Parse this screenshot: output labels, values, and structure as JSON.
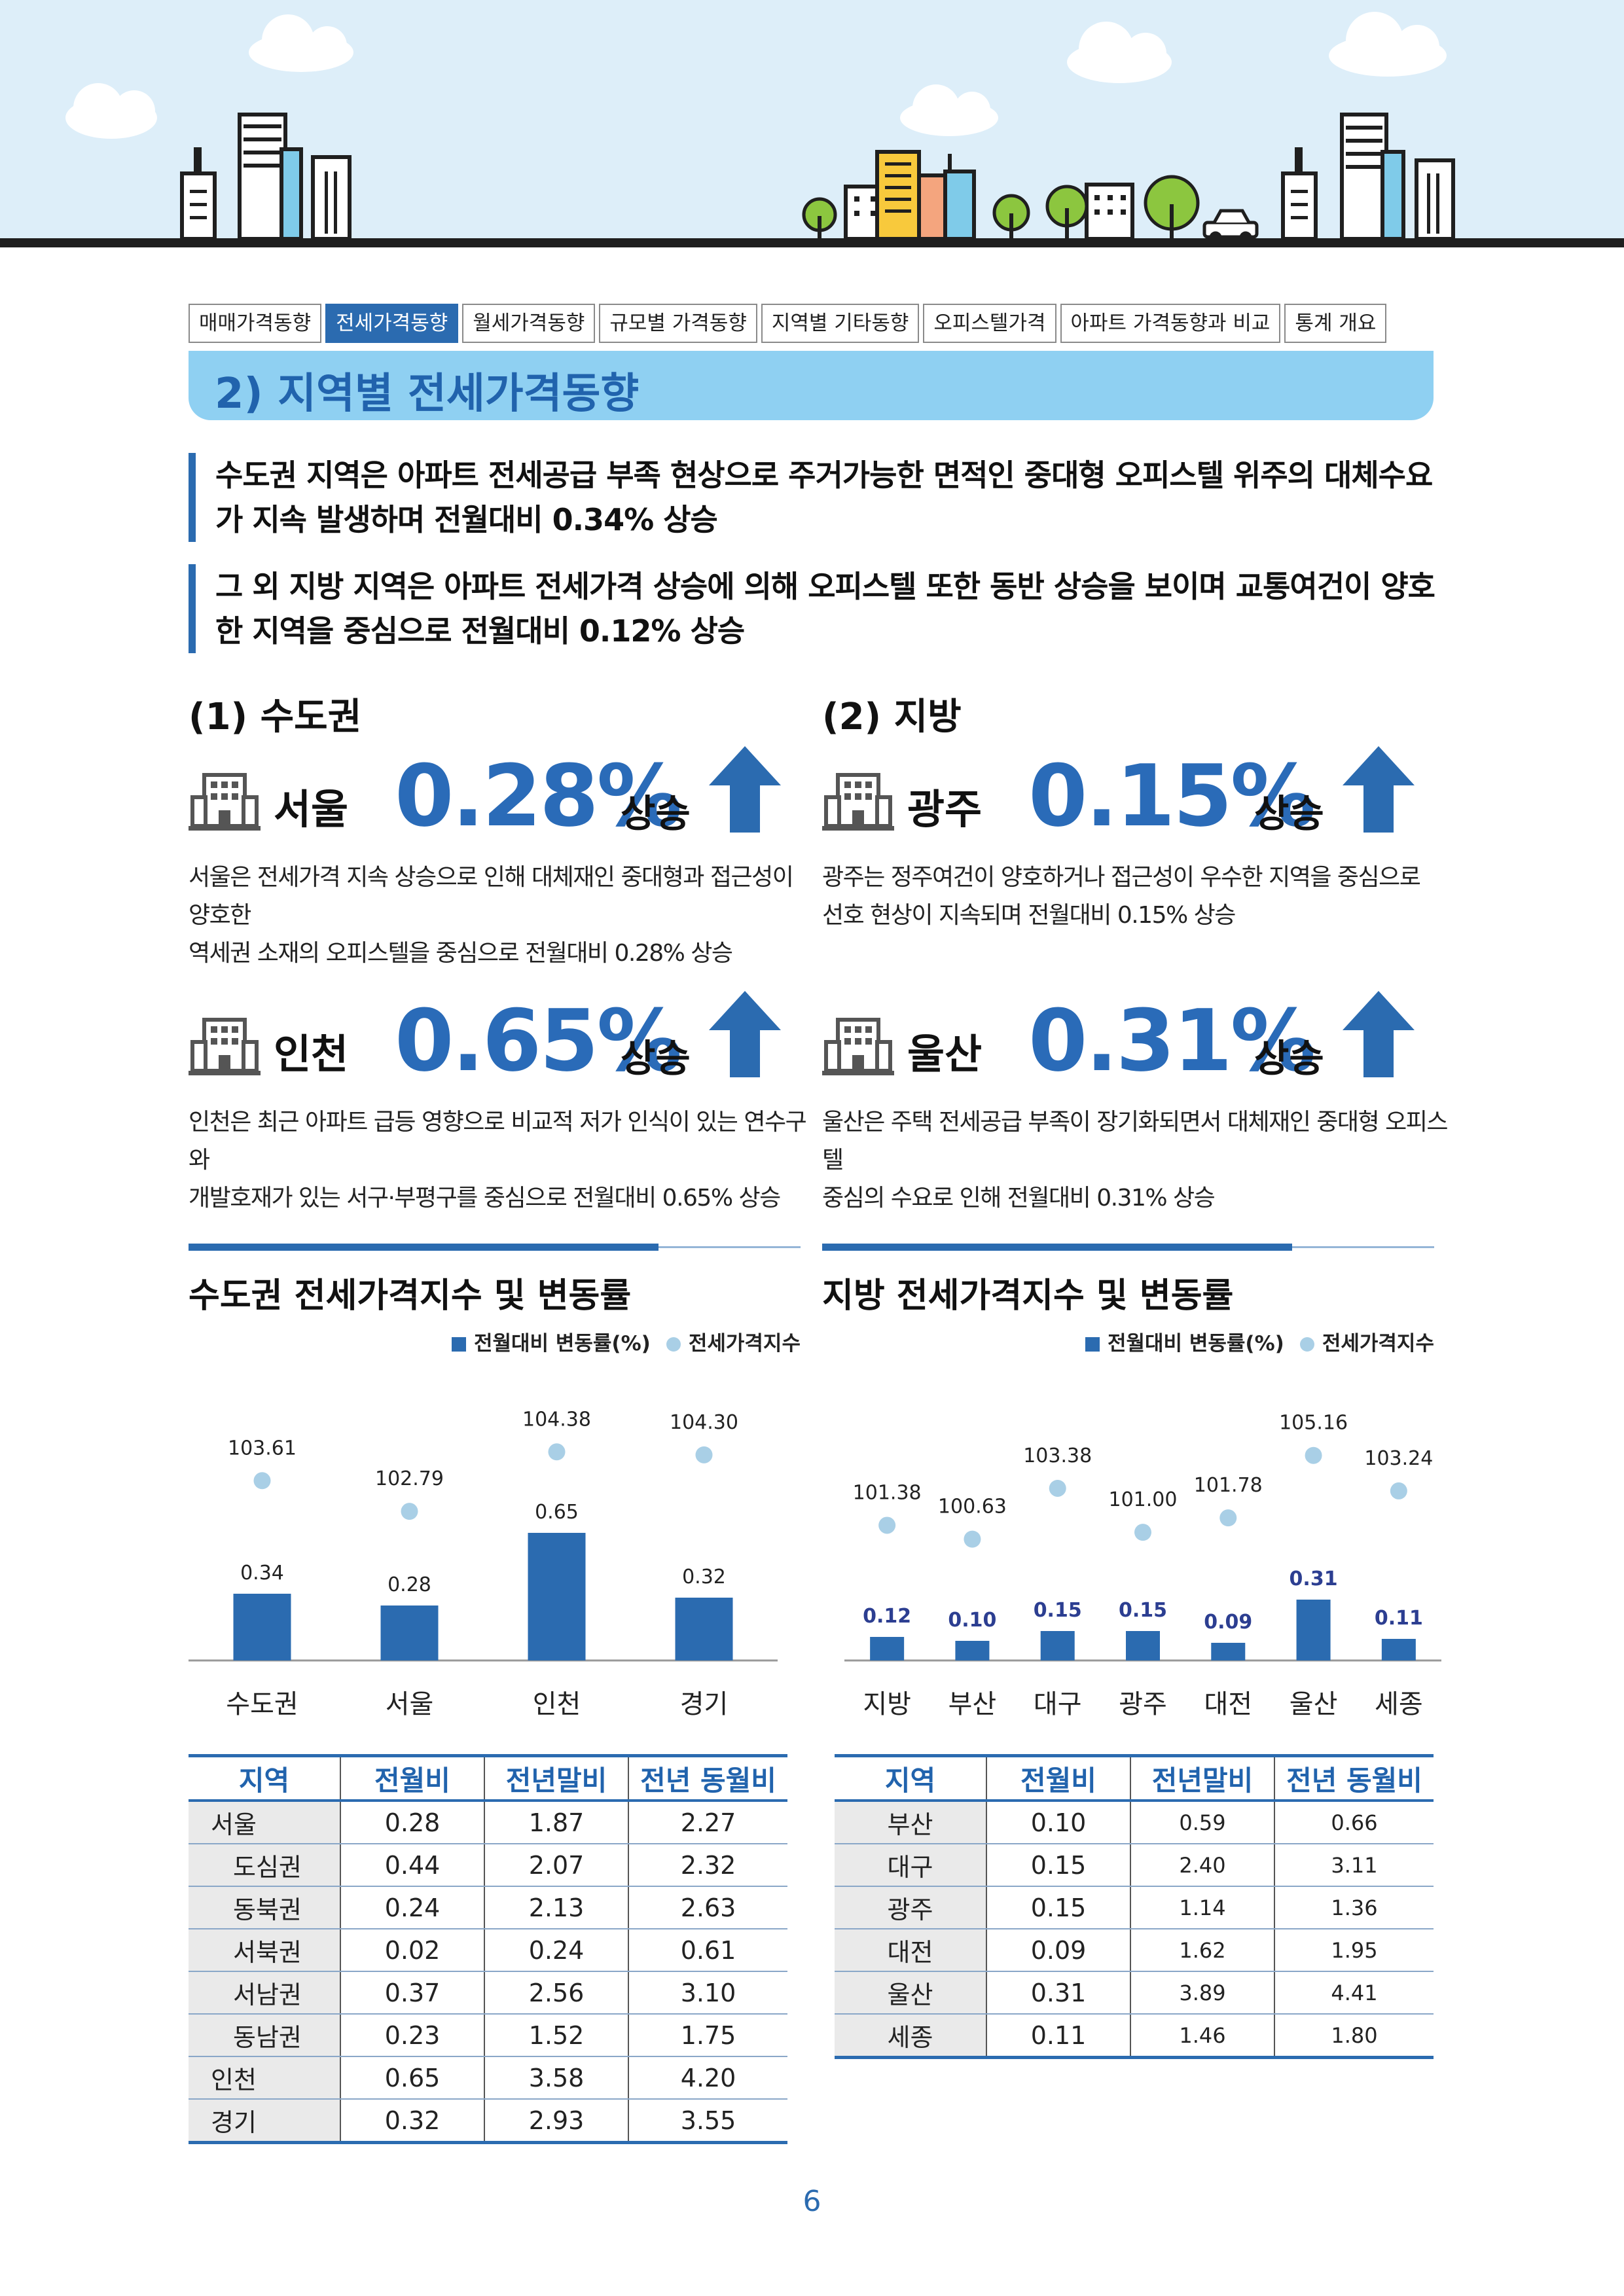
{
  "nav": {
    "tabs": [
      "매매가격동향",
      "전세가격동향",
      "월세가격동향",
      "규모별 가격동향",
      "지역별 기타동향",
      "오피스텔가격",
      "아파트 가격동향과 비교",
      "통계 개요"
    ],
    "active": "전세가격동향"
  },
  "section_title": "2) 지역별 전세가격동향",
  "lead": [
    "수도권 지역은 아파트 전세공급 부족 현상으로 주거가능한 면적인 중대형 오피스텔 위주의 대체수요가 지속 발생하며 전월대비 0.34% 상승",
    "그 외 지방 지역은 아파트 전세가격 상승에 의해 오피스텔 또한 동반 상승을 보이며 교통여건이 양호한 지역을 중심으로 전월대비 0.12% 상승"
  ],
  "regions": {
    "capital": {
      "heading": "(1) 수도권"
    },
    "local": {
      "heading": "(2) 지방"
    }
  },
  "highlights": {
    "seoul": {
      "city": "서울",
      "pct": "0.28%",
      "trend": "상승",
      "desc": [
        "서울은 전세가격 지속 상승으로 인해 대체재인 중대형과 접근성이 양호한",
        "역세권 소재의 오피스텔을 중심으로 전월대비 0.28% 상승"
      ]
    },
    "gwangju": {
      "city": "광주",
      "pct": "0.15%",
      "trend": "상승",
      "desc": [
        "광주는 정주여건이 양호하거나 접근성이 우수한 지역을 중심으로",
        "선호 현상이 지속되며 전월대비 0.15% 상승"
      ]
    },
    "incheon": {
      "city": "인천",
      "pct": "0.65%",
      "trend": "상승",
      "desc": [
        "인천은 최근 아파트 급등 영향으로 비교적 저가 인식이 있는 연수구와",
        "개발호재가 있는 서구·부평구를 중심으로 전월대비 0.65% 상승"
      ]
    },
    "ulsan": {
      "city": "울산",
      "pct": "0.31%",
      "trend": "상승",
      "desc": [
        "울산은 주택 전세공급 부족이 장기화되면서 대체재인 중대형 오피스텔",
        "중심의 수요로 인해 전월대비 0.31% 상승"
      ]
    }
  },
  "legend": {
    "bar": "전월대비 변동률(%)",
    "dot": "전세가격지수"
  },
  "chart_data": [
    {
      "type": "bar",
      "title": "수도권 전세가격지수 및 변동률",
      "categories": [
        "수도권",
        "서울",
        "인천",
        "경기"
      ],
      "series": [
        {
          "name": "전월대비 변동률(%)",
          "values": [
            0.34,
            0.28,
            0.65,
            0.32
          ],
          "labels": [
            "0.34",
            "0.28",
            "0.65",
            "0.32"
          ]
        },
        {
          "name": "전세가격지수",
          "values": [
            103.61,
            102.79,
            104.38,
            104.3
          ],
          "labels": [
            "103.61",
            "102.79",
            "104.38",
            "104.30"
          ]
        }
      ],
      "ylim": [
        0,
        0.8
      ],
      "index_ylim": [
        100.5,
        104.7
      ]
    },
    {
      "type": "bar",
      "title": "지방 전세가격지수 및 변동률",
      "categories": [
        "지방",
        "부산",
        "대구",
        "광주",
        "대전",
        "울산",
        "세종"
      ],
      "series": [
        {
          "name": "전월대비 변동률(%)",
          "values": [
            0.12,
            0.1,
            0.15,
            0.15,
            0.09,
            0.31,
            0.11
          ],
          "labels": [
            "0.12",
            "0.10",
            "0.15",
            "0.15",
            "0.09",
            "0.31",
            "0.11"
          ]
        },
        {
          "name": "전세가격지수",
          "values": [
            101.38,
            100.63,
            103.38,
            101.0,
            101.78,
            105.16,
            103.24
          ],
          "labels": [
            "101.38",
            "100.63",
            "103.38",
            "101.00",
            "101.78",
            "105.16",
            "103.24"
          ]
        }
      ],
      "ylim": [
        0,
        0.8
      ],
      "index_ylim": [
        97.5,
        106.0
      ]
    }
  ],
  "tables": {
    "capital": {
      "headers": [
        "지역",
        "전월비",
        "전년말비",
        "전년 동월비"
      ],
      "rows": [
        [
          "서울",
          "0.28",
          "1.87",
          "2.27"
        ],
        [
          "도심권",
          "0.44",
          "2.07",
          "2.32"
        ],
        [
          "동북권",
          "0.24",
          "2.13",
          "2.63"
        ],
        [
          "서북권",
          "0.02",
          "0.24",
          "0.61"
        ],
        [
          "서남권",
          "0.37",
          "2.56",
          "3.10"
        ],
        [
          "동남권",
          "0.23",
          "1.52",
          "1.75"
        ],
        [
          "인천",
          "0.65",
          "3.58",
          "4.20"
        ],
        [
          "경기",
          "0.32",
          "2.93",
          "3.55"
        ]
      ]
    },
    "local": {
      "headers": [
        "지역",
        "전월비",
        "전년말비",
        "전년 동월비"
      ],
      "rows": [
        [
          "부산",
          "0.10",
          "0.59",
          "0.66"
        ],
        [
          "대구",
          "0.15",
          "2.40",
          "3.11"
        ],
        [
          "광주",
          "0.15",
          "1.14",
          "1.36"
        ],
        [
          "대전",
          "0.09",
          "1.62",
          "1.95"
        ],
        [
          "울산",
          "0.31",
          "3.89",
          "4.41"
        ],
        [
          "세종",
          "0.11",
          "1.46",
          "1.80"
        ]
      ]
    }
  },
  "page_number": "6",
  "colors": {
    "primary": "#2b6bb0",
    "accent_light": "#8fd0f2",
    "dot": "#a9cfe6",
    "local_value": "#2c3e91"
  }
}
